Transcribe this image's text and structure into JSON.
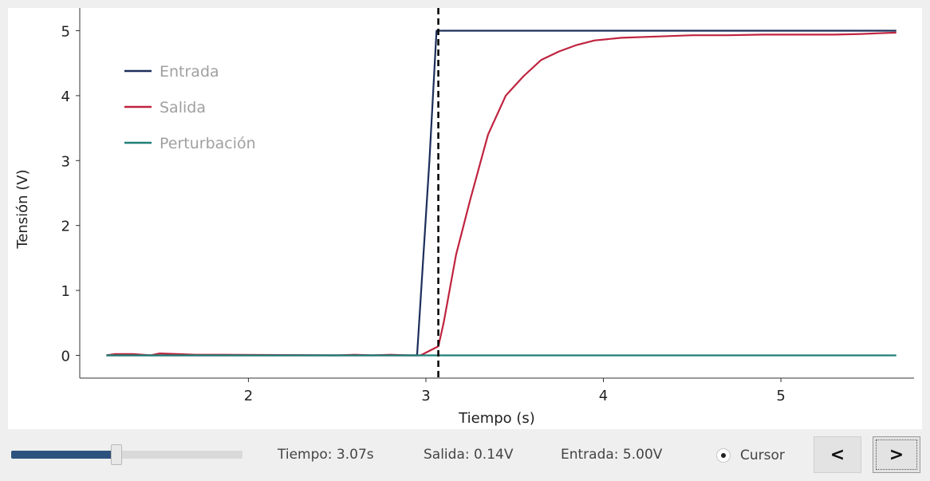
{
  "chart_data": {
    "type": "line",
    "xlabel": "Tiempo (s)",
    "ylabel": "Tensión (V)",
    "xlim": [
      1.05,
      5.75
    ],
    "ylim": [
      -0.35,
      5.35
    ],
    "xticks": [
      2,
      3,
      4,
      5
    ],
    "yticks": [
      0,
      1,
      2,
      3,
      4,
      5
    ],
    "grid": false,
    "legend": "top-left",
    "cursor_x": 3.07,
    "series": [
      {
        "name": "Entrada",
        "color": "#1c2e5a",
        "points": [
          [
            1.2,
            0
          ],
          [
            2.95,
            0
          ],
          [
            3.02,
            3.0
          ],
          [
            3.06,
            5.0
          ],
          [
            5.65,
            5.0
          ]
        ]
      },
      {
        "name": "Salida",
        "color": "#c0233f",
        "points": [
          [
            1.2,
            0
          ],
          [
            1.25,
            0.02
          ],
          [
            1.35,
            0.02
          ],
          [
            1.45,
            0
          ],
          [
            1.5,
            0.03
          ],
          [
            1.6,
            0.02
          ],
          [
            1.7,
            0.01
          ],
          [
            1.85,
            0.01
          ],
          [
            2.5,
            0
          ],
          [
            2.6,
            0.01
          ],
          [
            2.7,
            0
          ],
          [
            2.8,
            0.01
          ],
          [
            2.9,
            0
          ],
          [
            2.97,
            0
          ],
          [
            3.07,
            0.14
          ],
          [
            3.1,
            0.5
          ],
          [
            3.17,
            1.55
          ],
          [
            3.25,
            2.4
          ],
          [
            3.35,
            3.4
          ],
          [
            3.45,
            4.0
          ],
          [
            3.55,
            4.3
          ],
          [
            3.65,
            4.55
          ],
          [
            3.75,
            4.68
          ],
          [
            3.85,
            4.78
          ],
          [
            3.95,
            4.85
          ],
          [
            4.1,
            4.89
          ],
          [
            4.3,
            4.91
          ],
          [
            4.5,
            4.93
          ],
          [
            4.7,
            4.93
          ],
          [
            4.9,
            4.94
          ],
          [
            5.1,
            4.94
          ],
          [
            5.3,
            4.94
          ],
          [
            5.45,
            4.95
          ],
          [
            5.55,
            4.96
          ],
          [
            5.65,
            4.97
          ]
        ]
      },
      {
        "name": "Perturbación",
        "color": "#1f7f76",
        "points": [
          [
            1.2,
            0
          ],
          [
            5.65,
            0
          ]
        ]
      }
    ]
  },
  "toolbar": {
    "slider_value": 0.43,
    "tiempo": "Tiempo: 3.07s",
    "salida": "Salida: 0.14V",
    "entrada": "Entrada: 5.00V",
    "cursor_label": "Cursor",
    "cursor_checked": true,
    "prev_label": "<",
    "next_label": ">",
    "accent_color": "#2e527e"
  }
}
